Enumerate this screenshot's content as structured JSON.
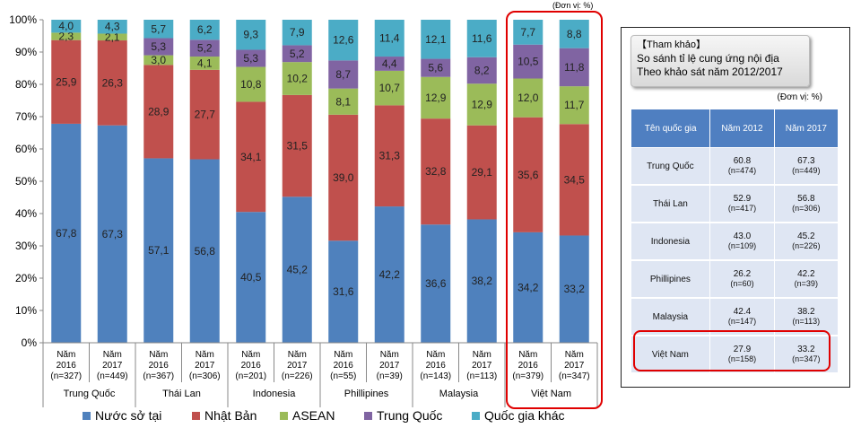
{
  "chart_data": {
    "type": "stacked-bar-100",
    "ylabel": "",
    "ylim": [
      0,
      100
    ],
    "y_ticks": [
      "0%",
      "10%",
      "20%",
      "30%",
      "40%",
      "50%",
      "60%",
      "70%",
      "80%",
      "90%",
      "100%"
    ],
    "unit_note": "(Đơn vị: %)",
    "bars": [
      {
        "year": "Năm",
        "year2": "2016",
        "n": "(n=327)",
        "values": [
          67.8,
          25.9,
          2.3,
          0,
          4.0
        ],
        "labels": [
          "67,8",
          "25,9",
          "2,3",
          "",
          "4,0"
        ]
      },
      {
        "year": "Năm",
        "year2": "2017",
        "n": "(n=449)",
        "values": [
          67.3,
          26.3,
          2.1,
          0,
          4.3
        ],
        "labels": [
          "67,3",
          "26,3",
          "2,1",
          "",
          "4,3"
        ]
      },
      {
        "year": "Năm",
        "year2": "2016",
        "n": "(n=367)",
        "values": [
          57.1,
          28.9,
          3.0,
          5.3,
          5.7
        ],
        "labels": [
          "57,1",
          "28,9",
          "3,0",
          "5,3",
          "5,7"
        ]
      },
      {
        "year": "Năm",
        "year2": "2017",
        "n": "(n=306)",
        "values": [
          56.8,
          27.7,
          4.1,
          5.2,
          6.2
        ],
        "labels": [
          "56,8",
          "27,7",
          "4,1",
          "5,2",
          "6,2"
        ]
      },
      {
        "year": "Năm",
        "year2": "2016",
        "n": "(n=201)",
        "values": [
          40.5,
          34.1,
          10.8,
          5.3,
          9.3
        ],
        "labels": [
          "40,5",
          "34,1",
          "10,8",
          "5,3",
          "9,3"
        ]
      },
      {
        "year": "Năm",
        "year2": "2017",
        "n": "(n=226)",
        "values": [
          45.2,
          31.5,
          10.2,
          5.2,
          7.9
        ],
        "labels": [
          "45,2",
          "31,5",
          "10,2",
          "5,2",
          "7,9"
        ]
      },
      {
        "year": "Năm",
        "year2": "2016",
        "n": "(n=55)",
        "values": [
          31.6,
          39.0,
          8.1,
          8.7,
          12.6
        ],
        "labels": [
          "31,6",
          "39,0",
          "8,1",
          "8,7",
          "12,6"
        ]
      },
      {
        "year": "Năm",
        "year2": "2017",
        "n": "(n=39)",
        "values": [
          42.2,
          31.3,
          10.7,
          4.4,
          11.4
        ],
        "labels": [
          "42,2",
          "31,3",
          "10,7",
          "4,4",
          "11,4"
        ]
      },
      {
        "year": "Năm",
        "year2": "2016",
        "n": "(n=143)",
        "values": [
          36.6,
          32.8,
          12.9,
          5.6,
          12.1
        ],
        "labels": [
          "36,6",
          "32,8",
          "12,9",
          "5,6",
          "12,1"
        ]
      },
      {
        "year": "Năm",
        "year2": "2017",
        "n": "(n=113)",
        "values": [
          38.2,
          29.1,
          12.9,
          8.2,
          11.6
        ],
        "labels": [
          "38,2",
          "29,1",
          "12,9",
          "8,2",
          "11,6"
        ]
      },
      {
        "year": "Năm",
        "year2": "2016",
        "n": "(n=379)",
        "values": [
          34.2,
          35.6,
          12.0,
          10.5,
          7.7
        ],
        "labels": [
          "34,2",
          "35,6",
          "12,0",
          "10,5",
          "7,7"
        ]
      },
      {
        "year": "Năm",
        "year2": "2017",
        "n": "(n=347)",
        "values": [
          33.2,
          34.5,
          11.7,
          11.8,
          8.8
        ],
        "labels": [
          "33,2",
          "34,5",
          "11,7",
          "11,8",
          "8,8"
        ]
      }
    ],
    "groups": [
      "Trung Quốc",
      "Thái Lan",
      "Indonesia",
      "Phillipines",
      "Malaysia",
      "Việt Nam"
    ],
    "series": [
      {
        "name": "Nước sở tại",
        "color": "#4f81bd"
      },
      {
        "name": "Nhật Bản",
        "color": "#c0504d"
      },
      {
        "name": "ASEAN",
        "color": "#9bbb59"
      },
      {
        "name": "Trung Quốc",
        "color": "#8064a2"
      },
      {
        "name": "Quốc gia khác",
        "color": "#4bacc6"
      }
    ]
  },
  "reference": {
    "tag": "【Tham khảo】",
    "title_line1": "So sánh tỉ lệ cung ứng nội địa",
    "title_line2": "Theo khảo sát năm 2012/2017",
    "unit": "(Đơn vị: %)",
    "headers": [
      "Tên quốc gia",
      "Năm 2012",
      "Năm 2017"
    ],
    "rows": [
      {
        "name": "Trung Quốc",
        "v2012": "60.8",
        "n2012": "(n=474)",
        "v2017": "67.3",
        "n2017": "(n=449)"
      },
      {
        "name": "Thái Lan",
        "v2012": "52.9",
        "n2012": "(n=417)",
        "v2017": "56.8",
        "n2017": "(n=306)"
      },
      {
        "name": "Indonesia",
        "v2012": "43.0",
        "n2012": "(n=109)",
        "v2017": "45.2",
        "n2017": "(n=226)"
      },
      {
        "name": "Phillipines",
        "v2012": "26.2",
        "n2012": "(n=60)",
        "v2017": "42.2",
        "n2017": "(n=39)"
      },
      {
        "name": "Malaysia",
        "v2012": "42.4",
        "n2012": "(n=147)",
        "v2017": "38.2",
        "n2017": "(n=113)"
      },
      {
        "name": "Việt Nam",
        "v2012": "27.9",
        "n2012": "(n=158)",
        "v2017": "33.2",
        "n2017": "(n=347)"
      }
    ]
  }
}
